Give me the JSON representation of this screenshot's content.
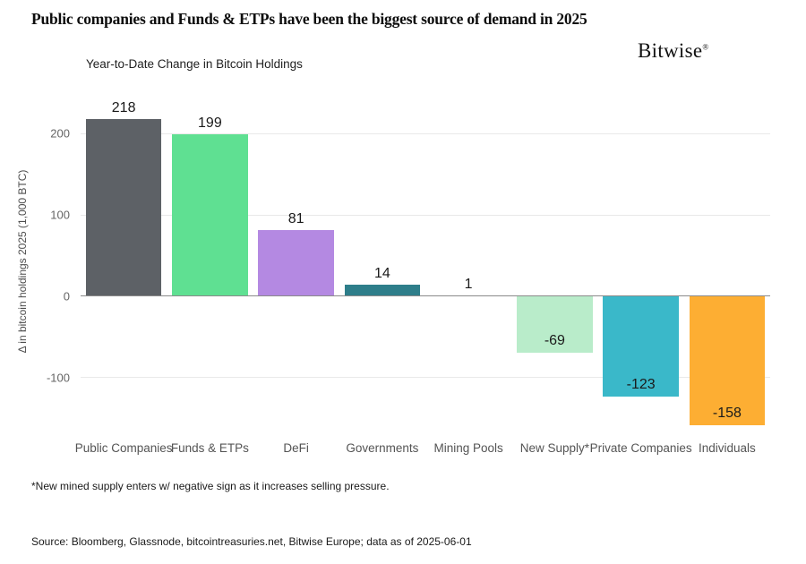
{
  "header": {
    "title": "Public companies and Funds & ETPs have been the biggest source of demand in 2025",
    "logo_text": "Bitwise",
    "logo_mark": "®"
  },
  "chart_data": {
    "type": "bar",
    "title": "Year-to-Date Change in Bitcoin Holdings",
    "ylabel": "Δ in bitcoin holdings 2025 (1,000 BTC)",
    "categories": [
      "Public Companies",
      "Funds & ETPs",
      "DeFi",
      "Governments",
      "Mining Pools",
      "New Supply*",
      "Private Companies",
      "Individuals"
    ],
    "values": [
      218,
      199,
      81,
      14,
      1,
      -69,
      -123,
      -158
    ],
    "bar_colors": [
      "#5d6166",
      "#5fe092",
      "#b489e2",
      "#2e7e8a",
      "#60666b",
      "#b9ecca",
      "#3ab8c9",
      "#fdae33"
    ],
    "yticks": [
      200,
      100,
      0,
      -100
    ],
    "ylim": [
      -164,
      243
    ],
    "grid": true,
    "legend": false,
    "negative_label_position": "inside-bottom",
    "positive_label_position": "above"
  },
  "footnote": "*New mined supply enters w/ negative sign as it increases selling pressure.",
  "source": "Source: Bloomberg, Glassnode, bitcointreasuries.net, Bitwise Europe; data as of 2025-06-01"
}
